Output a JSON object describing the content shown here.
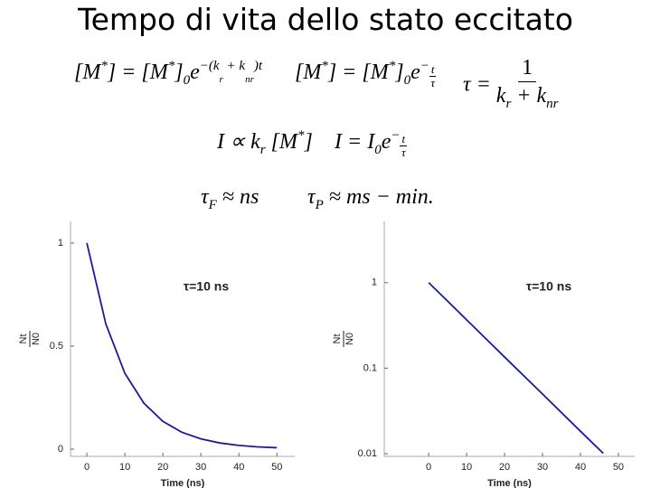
{
  "title": "Tempo di vita dello stato eccitato",
  "formulas": {
    "eq1": [
      "[M",
      "*",
      "] = [M",
      "*",
      "]",
      "0",
      "e",
      "−(k",
      "r",
      " + k",
      "nr",
      ")t"
    ],
    "eq2": [
      "[M",
      "*",
      "] = [M",
      "*",
      "]",
      "0",
      "e",
      "−",
      "t",
      "τ"
    ],
    "eq3": [
      "τ =",
      "1",
      "k",
      "r",
      " + k",
      "nr"
    ],
    "eq4": [
      "I ∝ k",
      "r",
      " [M",
      "*",
      "]"
    ],
    "eq5": [
      "I = I",
      "0",
      "e",
      "−",
      "t",
      "τ"
    ],
    "eq6": [
      "τ",
      "F",
      " ≈ ns"
    ],
    "eq7": [
      "τ",
      "P",
      " ≈ ms − min."
    ]
  },
  "chart_data": [
    {
      "type": "line",
      "xlabel": "Time (ns)",
      "ylabel": {
        "numerator": "Nt",
        "denominator": "N0"
      },
      "annotation": "τ=10 ns",
      "x": [
        0,
        5,
        10,
        15,
        20,
        25,
        30,
        35,
        40,
        45,
        50
      ],
      "series": [
        {
          "color": "#1c1c96",
          "values": [
            1,
            0.607,
            0.368,
            0.223,
            0.135,
            0.082,
            0.05,
            0.03,
            0.018,
            0.011,
            0.007
          ]
        }
      ],
      "xlim": [
        -4.3,
        54.7
      ],
      "ylim": [
        -0.035,
        1.105
      ],
      "xticks": [
        0,
        10,
        20,
        30,
        40,
        50
      ],
      "yticks": [
        0,
        0.5,
        1
      ],
      "log_y": false
    },
    {
      "type": "line",
      "xlabel": "Time (ns)",
      "ylabel": {
        "numerator": "Nt",
        "denominator": "N0"
      },
      "annotation": "τ=10 ns",
      "x": [
        0,
        10,
        20,
        30,
        40,
        46
      ],
      "series": [
        {
          "color": "#1c1c96",
          "values": [
            1,
            0.368,
            0.135,
            0.0498,
            0.0183,
            0.0101
          ]
        }
      ],
      "xlim": [
        -11.7,
        54.3
      ],
      "ylim": [
        0.0093,
        5.2
      ],
      "xticks": [
        0,
        10,
        20,
        30,
        40,
        50
      ],
      "yticks": [
        0.01,
        0.1,
        1
      ],
      "log_y": true
    }
  ]
}
